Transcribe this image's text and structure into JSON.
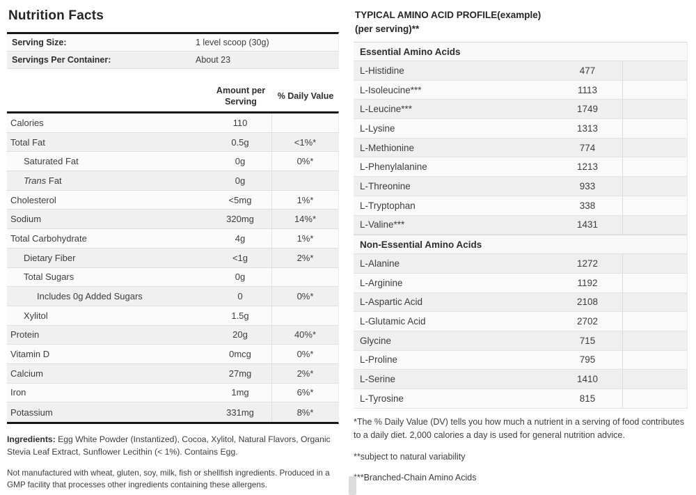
{
  "nutrition": {
    "title": "Nutrition Facts",
    "serving_rows": [
      {
        "label": "Serving Size:",
        "value": "1 level scoop (30g)"
      },
      {
        "label": "Servings Per Container:",
        "value": "About 23"
      }
    ],
    "header": {
      "amount": "Amount per Serving",
      "daily_value": "% Daily Value"
    },
    "rows": [
      {
        "label": "Calories",
        "amount": "110",
        "dv": "",
        "indent": 0
      },
      {
        "label": "Total Fat",
        "amount": "0.5g",
        "dv": "<1%*",
        "indent": 0
      },
      {
        "label": "Saturated Fat",
        "amount": "0g",
        "dv": "0%*",
        "indent": 1
      },
      {
        "label_italic": "Trans",
        "label": " Fat",
        "amount": "0g",
        "dv": "",
        "indent": 1
      },
      {
        "label": "Cholesterol",
        "amount": "<5mg",
        "dv": "1%*",
        "indent": 0
      },
      {
        "label": "Sodium",
        "amount": "320mg",
        "dv": "14%*",
        "indent": 0
      },
      {
        "label": "Total Carbohydrate",
        "amount": "4g",
        "dv": "1%*",
        "indent": 0
      },
      {
        "label": "Dietary Fiber",
        "amount": "<1g",
        "dv": "2%*",
        "indent": 1
      },
      {
        "label": "Total Sugars",
        "amount": "0g",
        "dv": "",
        "indent": 1
      },
      {
        "label": "Includes 0g Added Sugars",
        "amount": "0",
        "dv": "0%*",
        "indent": 2
      },
      {
        "label": "Xylitol",
        "amount": "1.5g",
        "dv": "",
        "indent": 1
      },
      {
        "label": "Protein",
        "amount": "20g",
        "dv": "40%*",
        "indent": 0
      },
      {
        "label": "Vitamin D",
        "amount": "0mcg",
        "dv": "0%*",
        "indent": 0
      },
      {
        "label": "Calcium",
        "amount": "27mg",
        "dv": "2%*",
        "indent": 0
      },
      {
        "label": "Iron",
        "amount": "1mg",
        "dv": "6%*",
        "indent": 0
      },
      {
        "label": "Potassium",
        "amount": "331mg",
        "dv": "8%*",
        "indent": 0
      }
    ],
    "ingredients_label": "Ingredients:",
    "ingredients_text": "Egg White Powder (Instantized), Cocoa, Xylitol, Natural Flavors, Organic Stevia Leaf Extract, Sunflower Lecithin (< 1%). Contains Egg.",
    "allergen_note": "Not manufactured with wheat, gluten, soy, milk, fish or shellfish ingredients. Produced in a GMP facility that processes other ingredients containing these allergens."
  },
  "amino": {
    "title_line1": "TYPICAL AMINO ACID PROFILE(example)",
    "title_line2": "(per serving)**",
    "sections": [
      {
        "header": "Essential Amino Acids",
        "rows": [
          {
            "name": "L-Histidine",
            "value": "477"
          },
          {
            "name": "L-Isoleucine***",
            "value": "1113"
          },
          {
            "name": "L-Leucine***",
            "value": "1749"
          },
          {
            "name": "L-Lysine",
            "value": "1313"
          },
          {
            "name": "L-Methionine",
            "value": "774"
          },
          {
            "name": "L-Phenylalanine",
            "value": "1213"
          },
          {
            "name": "L-Threonine",
            "value": "933"
          },
          {
            "name": "L-Tryptophan",
            "value": "338"
          },
          {
            "name": "L-Valine***",
            "value": "1431"
          }
        ]
      },
      {
        "header": "Non-Essential Amino Acids",
        "rows": [
          {
            "name": "L-Alanine",
            "value": "1272"
          },
          {
            "name": "L-Arginine",
            "value": "1192"
          },
          {
            "name": "L-Aspartic Acid",
            "value": "2108"
          },
          {
            "name": "L-Glutamic Acid",
            "value": "2702"
          },
          {
            "name": "Glycine",
            "value": "715"
          },
          {
            "name": "L-Proline",
            "value": "795"
          },
          {
            "name": "L-Serine",
            "value": "1410"
          },
          {
            "name": "L-Tyrosine",
            "value": "815"
          }
        ]
      }
    ],
    "footnotes": [
      "*The % Daily Value (DV) tells you how much a nutrient in a serving of food contributes to a daily diet. 2,000 calories a day is used for general nutrition advice.",
      "**subject to natural variability",
      "***Branched-Chain Amino Acids"
    ]
  },
  "colors": {
    "row_shade": "#f0f0f0",
    "row_light": "#fbfbfb",
    "thick_rule": "#161616",
    "row_divider": "#dedede",
    "column_divider": "#e0e0e0",
    "body_text": "#3c3c3c",
    "heading_text": "#252525"
  }
}
